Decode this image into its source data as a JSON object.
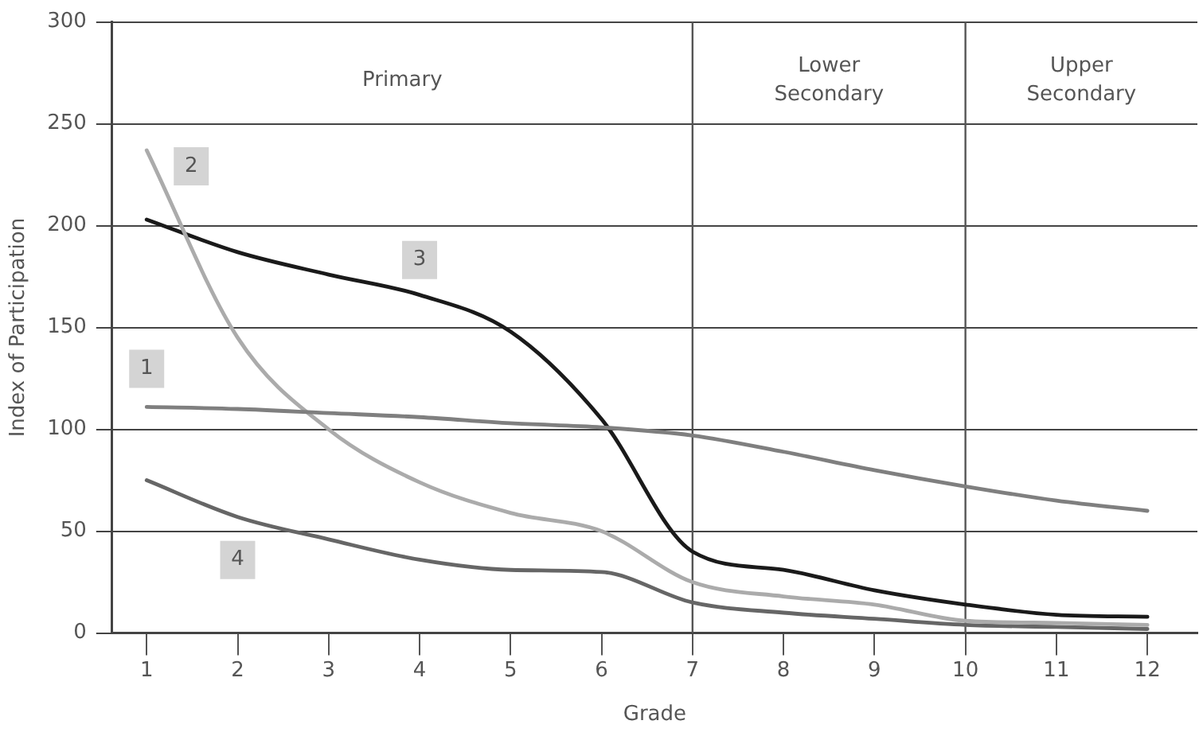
{
  "chart_data": {
    "type": "line",
    "xlabel": "Grade",
    "ylabel": "Index of Participation",
    "x": [
      1,
      2,
      3,
      4,
      5,
      6,
      7,
      8,
      9,
      10,
      11,
      12
    ],
    "xlim": [
      0.62,
      12.55
    ],
    "xticks": [
      1,
      2,
      3,
      4,
      5,
      6,
      7,
      8,
      9,
      10,
      11,
      12
    ],
    "ylim": [
      0,
      300
    ],
    "yticks": [
      0,
      50,
      100,
      150,
      200,
      250,
      300
    ],
    "grid": "y",
    "legend": false,
    "marker": "none",
    "line_style": "solid",
    "series": [
      {
        "name": "1",
        "color": "#7f7f7f",
        "values": [
          111,
          110,
          108,
          106,
          103,
          101,
          97,
          89,
          80,
          72,
          65,
          60
        ]
      },
      {
        "name": "2",
        "color": "#ababab",
        "values": [
          237,
          145,
          100,
          74,
          59,
          50,
          25,
          18,
          14,
          6,
          5,
          4
        ]
      },
      {
        "name": "3",
        "color": "#1a1a1a",
        "values": [
          203,
          187,
          176,
          166,
          148,
          105,
          40,
          31,
          21,
          14,
          9,
          8
        ]
      },
      {
        "name": "4",
        "color": "#666666",
        "values": [
          75,
          57,
          46,
          36,
          31,
          30,
          15,
          10,
          7,
          4,
          3,
          2
        ]
      }
    ],
    "ref_lines": [
      {
        "axis": "x",
        "value": 7
      },
      {
        "axis": "x",
        "value": 10
      }
    ],
    "annotations": [
      "Primary",
      "Lower Secondary",
      "Upper Secondary"
    ]
  }
}
